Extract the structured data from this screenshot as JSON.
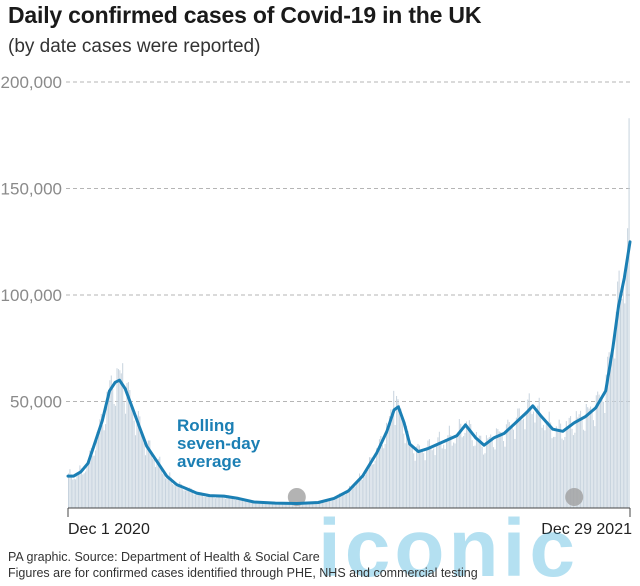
{
  "title": "Daily confirmed cases of Covid-19 in the UK",
  "subtitle": "(by date cases were reported)",
  "source": "PA graphic. Source: Department of Health & Social Care",
  "note": "Figures are for confirmed cases identified through PHE, NHS and commercial testing",
  "watermark": "iconic",
  "colors": {
    "line": "#1b7fb4",
    "bars": "#c7d3de",
    "grid": "#b5b5b5",
    "ticks": "#8a8a8a",
    "marker": "#a0a0a0"
  },
  "chart_data": {
    "type": "bar",
    "x_start": "2020-12-01",
    "x_end": "2021-12-29",
    "xlabels": [
      "Dec 1 2020",
      "Dec 29 2021"
    ],
    "yticks": [
      "50,000",
      "100,000",
      "150,000",
      "200,000"
    ],
    "ylim": [
      0,
      200000
    ],
    "grid": true,
    "bars_series": "daily confirmed cases",
    "line_label": [
      "Rolling",
      "seven-day",
      "average"
    ],
    "line_series": [
      [
        "2020-12-01",
        15000
      ],
      [
        "2020-12-05",
        15000
      ],
      [
        "2020-12-10",
        17000
      ],
      [
        "2020-12-15",
        21000
      ],
      [
        "2020-12-20",
        31000
      ],
      [
        "2020-12-25",
        41000
      ],
      [
        "2020-12-30",
        55000
      ],
      [
        "2021-01-03",
        59000
      ],
      [
        "2021-01-06",
        60000
      ],
      [
        "2021-01-10",
        56000
      ],
      [
        "2021-01-15",
        47000
      ],
      [
        "2021-01-20",
        38000
      ],
      [
        "2021-01-25",
        29000
      ],
      [
        "2021-02-01",
        22000
      ],
      [
        "2021-02-08",
        15000
      ],
      [
        "2021-02-15",
        11000
      ],
      [
        "2021-02-22",
        9000
      ],
      [
        "2021-03-01",
        7000
      ],
      [
        "2021-03-10",
        5800
      ],
      [
        "2021-03-20",
        5600
      ],
      [
        "2021-03-30",
        4500
      ],
      [
        "2021-04-10",
        2800
      ],
      [
        "2021-04-25",
        2300
      ],
      [
        "2021-05-10",
        2100
      ],
      [
        "2021-05-25",
        2600
      ],
      [
        "2021-06-05",
        4500
      ],
      [
        "2021-06-15",
        8000
      ],
      [
        "2021-06-25",
        15000
      ],
      [
        "2021-07-05",
        26000
      ],
      [
        "2021-07-12",
        36000
      ],
      [
        "2021-07-17",
        46000
      ],
      [
        "2021-07-20",
        47500
      ],
      [
        "2021-07-24",
        40000
      ],
      [
        "2021-07-28",
        30000
      ],
      [
        "2021-08-03",
        26500
      ],
      [
        "2021-08-10",
        28000
      ],
      [
        "2021-08-20",
        31000
      ],
      [
        "2021-08-30",
        34000
      ],
      [
        "2021-09-05",
        39000
      ],
      [
        "2021-09-12",
        33000
      ],
      [
        "2021-09-18",
        29500
      ],
      [
        "2021-09-25",
        33000
      ],
      [
        "2021-10-02",
        35000
      ],
      [
        "2021-10-10",
        40000
      ],
      [
        "2021-10-18",
        45000
      ],
      [
        "2021-10-22",
        48000
      ],
      [
        "2021-10-28",
        43000
      ],
      [
        "2021-11-05",
        37000
      ],
      [
        "2021-11-12",
        36000
      ],
      [
        "2021-11-20",
        40000
      ],
      [
        "2021-11-28",
        43000
      ],
      [
        "2021-12-05",
        47000
      ],
      [
        "2021-12-12",
        55000
      ],
      [
        "2021-12-17",
        75000
      ],
      [
        "2021-12-21",
        95000
      ],
      [
        "2021-12-25",
        108000
      ],
      [
        "2021-12-29",
        125000
      ]
    ],
    "bar_peaks": [
      [
        "2021-01-08",
        68000
      ],
      [
        "2021-07-17",
        55000
      ],
      [
        "2021-12-29",
        183000
      ]
    ]
  }
}
